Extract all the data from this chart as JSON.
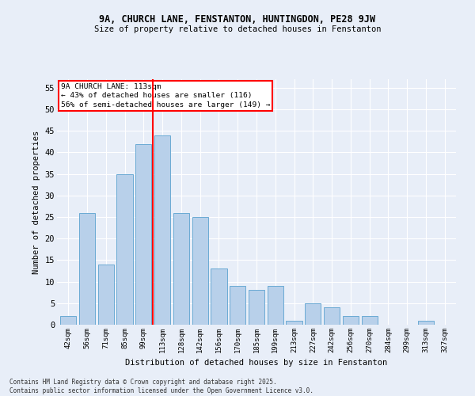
{
  "title1": "9A, CHURCH LANE, FENSTANTON, HUNTINGDON, PE28 9JW",
  "title2": "Size of property relative to detached houses in Fenstanton",
  "xlabel": "Distribution of detached houses by size in Fenstanton",
  "ylabel": "Number of detached properties",
  "categories": [
    "42sqm",
    "56sqm",
    "71sqm",
    "85sqm",
    "99sqm",
    "113sqm",
    "128sqm",
    "142sqm",
    "156sqm",
    "170sqm",
    "185sqm",
    "199sqm",
    "213sqm",
    "227sqm",
    "242sqm",
    "256sqm",
    "270sqm",
    "284sqm",
    "299sqm",
    "313sqm",
    "327sqm"
  ],
  "values": [
    2,
    26,
    14,
    35,
    42,
    44,
    26,
    25,
    13,
    9,
    8,
    9,
    1,
    5,
    4,
    2,
    2,
    0,
    0,
    1,
    0
  ],
  "bar_color": "#b8d0ea",
  "bar_edge_color": "#6aaad4",
  "redline_index": 5,
  "redline_label": "9A CHURCH LANE: 113sqm\n← 43% of detached houses are smaller (116)\n56% of semi-detached houses are larger (149) →",
  "ylim": [
    0,
    57
  ],
  "yticks": [
    0,
    5,
    10,
    15,
    20,
    25,
    30,
    35,
    40,
    45,
    50,
    55
  ],
  "background_color": "#e8eef8",
  "grid_color": "#ffffff",
  "fig_background": "#e8eef8",
  "footnote": "Contains HM Land Registry data © Crown copyright and database right 2025.\nContains public sector information licensed under the Open Government Licence v3.0."
}
